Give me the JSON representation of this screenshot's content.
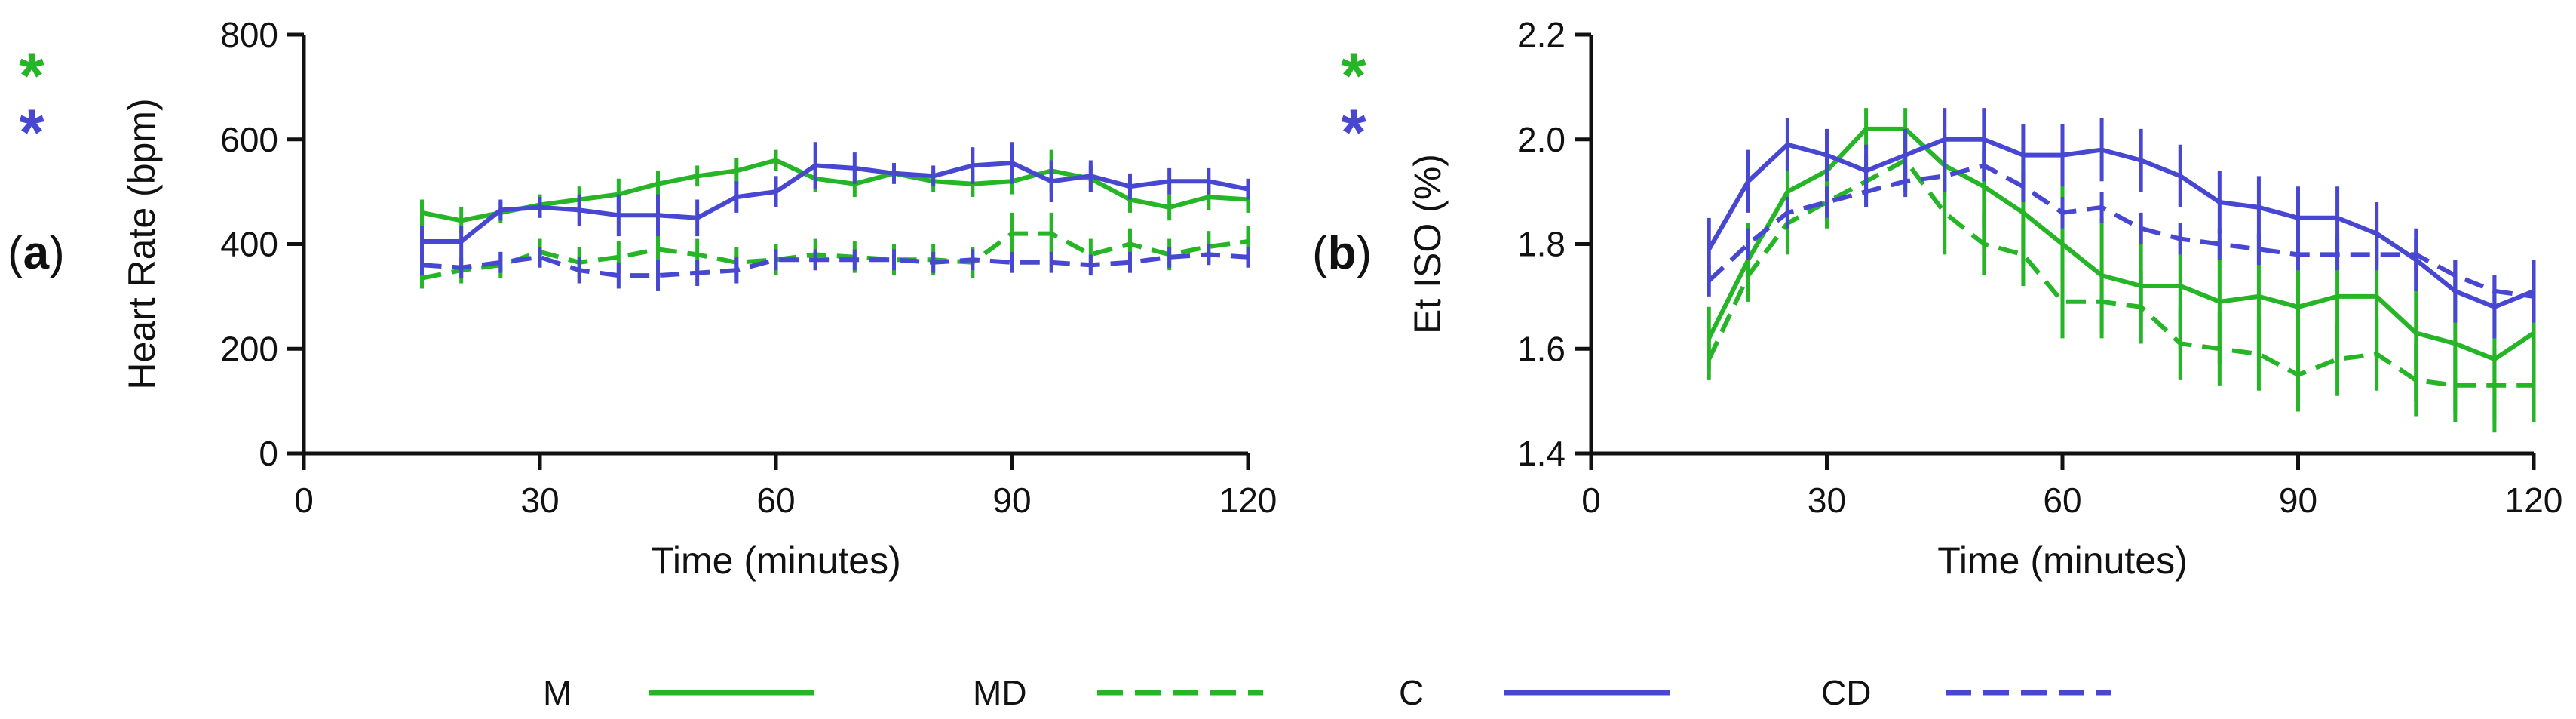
{
  "colors": {
    "green": "#26b526",
    "blue": "#4747d1",
    "axis": "#111111"
  },
  "legend": [
    {
      "label": "M",
      "color": "#26b526",
      "dashed": false
    },
    {
      "label": "MD",
      "color": "#26b526",
      "dashed": true
    },
    {
      "label": "C",
      "color": "#4747d1",
      "dashed": false
    },
    {
      "label": "CD",
      "color": "#4747d1",
      "dashed": true
    }
  ],
  "chart_data": [
    {
      "type": "line",
      "panel_label": "(a)",
      "panel_label_parts": [
        "(",
        "a",
        ")"
      ],
      "title": "",
      "xlabel": "Time (minutes)",
      "ylabel": "Heart Rate (bpm)",
      "xlim": [
        0,
        120
      ],
      "ylim": [
        0,
        800
      ],
      "xticks": [
        0,
        30,
        60,
        90,
        120
      ],
      "yticks": [
        0,
        200,
        400,
        600,
        800
      ],
      "significance_markers": [
        {
          "text": "*",
          "color": "#26b526"
        },
        {
          "text": "*",
          "color": "#4747d1"
        }
      ],
      "x": [
        15,
        20,
        25,
        30,
        35,
        40,
        45,
        50,
        55,
        60,
        65,
        70,
        75,
        80,
        85,
        90,
        95,
        100,
        105,
        110,
        115,
        120
      ],
      "series": [
        {
          "name": "M",
          "color": "#26b526",
          "dashed": false,
          "values": [
            460,
            445,
            460,
            475,
            485,
            495,
            515,
            530,
            540,
            560,
            525,
            515,
            535,
            520,
            515,
            520,
            540,
            525,
            485,
            470,
            490,
            485
          ],
          "errors": [
            25,
            25,
            20,
            20,
            25,
            30,
            25,
            20,
            25,
            20,
            25,
            25,
            20,
            20,
            25,
            25,
            40,
            25,
            25,
            25,
            25,
            25
          ]
        },
        {
          "name": "MD",
          "color": "#26b526",
          "dashed": true,
          "values": [
            335,
            350,
            360,
            385,
            365,
            375,
            390,
            380,
            365,
            370,
            380,
            375,
            370,
            370,
            365,
            420,
            420,
            380,
            400,
            380,
            395,
            405
          ],
          "errors": [
            20,
            25,
            25,
            25,
            30,
            30,
            30,
            30,
            30,
            30,
            30,
            30,
            30,
            30,
            30,
            40,
            40,
            30,
            30,
            30,
            30,
            30
          ]
        },
        {
          "name": "C",
          "color": "#4747d1",
          "dashed": false,
          "values": [
            405,
            405,
            465,
            470,
            465,
            455,
            455,
            450,
            490,
            500,
            550,
            545,
            535,
            530,
            550,
            555,
            520,
            530,
            510,
            520,
            520,
            505
          ],
          "errors": [
            30,
            30,
            20,
            20,
            30,
            40,
            40,
            35,
            30,
            30,
            45,
            30,
            20,
            20,
            35,
            40,
            40,
            30,
            25,
            25,
            25,
            20
          ]
        },
        {
          "name": "CD",
          "color": "#4747d1",
          "dashed": true,
          "values": [
            360,
            355,
            365,
            375,
            350,
            340,
            340,
            345,
            350,
            370,
            370,
            370,
            370,
            365,
            370,
            365,
            365,
            360,
            365,
            375,
            380,
            375
          ],
          "errors": [
            20,
            20,
            20,
            20,
            25,
            25,
            30,
            25,
            25,
            20,
            20,
            20,
            20,
            20,
            20,
            20,
            20,
            20,
            20,
            20,
            20,
            20
          ]
        }
      ]
    },
    {
      "type": "line",
      "panel_label": "(b)",
      "panel_label_parts": [
        "(",
        "b",
        ")"
      ],
      "title": "",
      "xlabel": "Time (minutes)",
      "ylabel": "Et ISO (%)",
      "xlim": [
        0,
        120
      ],
      "ylim": [
        1.4,
        2.2
      ],
      "xticks": [
        0,
        30,
        60,
        90,
        120
      ],
      "yticks": [
        1.4,
        1.6,
        1.8,
        2.0,
        2.2
      ],
      "ytick_labels": [
        "1.4",
        "1.6",
        "1.8",
        "2.0",
        "2.2"
      ],
      "significance_markers": [
        {
          "text": "*",
          "color": "#26b526"
        },
        {
          "text": "*",
          "color": "#4747d1"
        }
      ],
      "x": [
        15,
        20,
        25,
        30,
        35,
        40,
        45,
        50,
        55,
        60,
        65,
        70,
        75,
        80,
        85,
        90,
        95,
        100,
        105,
        110,
        115,
        120
      ],
      "series": [
        {
          "name": "M",
          "color": "#26b526",
          "dashed": false,
          "values": [
            1.62,
            1.77,
            1.9,
            1.94,
            2.02,
            2.02,
            1.95,
            1.91,
            1.86,
            1.8,
            1.74,
            1.72,
            1.72,
            1.69,
            1.7,
            1.68,
            1.7,
            1.7,
            1.63,
            1.61,
            1.58,
            1.63
          ],
          "errors": [
            0.06,
            0.07,
            0.06,
            0.05,
            0.04,
            0.04,
            0.06,
            0.08,
            0.1,
            0.12,
            0.11,
            0.11,
            0.12,
            0.12,
            0.12,
            0.13,
            0.12,
            0.12,
            0.13,
            0.13,
            0.14,
            0.14
          ]
        },
        {
          "name": "MD",
          "color": "#26b526",
          "dashed": true,
          "values": [
            1.58,
            1.74,
            1.84,
            1.88,
            1.92,
            1.96,
            1.86,
            1.8,
            1.78,
            1.69,
            1.69,
            1.68,
            1.61,
            1.6,
            1.59,
            1.55,
            1.58,
            1.59,
            1.54,
            1.53,
            1.53,
            1.53
          ],
          "errors": [
            0.04,
            0.05,
            0.06,
            0.05,
            0.05,
            0.06,
            0.08,
            0.06,
            0.06,
            0.07,
            0.07,
            0.07,
            0.07,
            0.07,
            0.07,
            0.07,
            0.07,
            0.07,
            0.07,
            0.07,
            0.07,
            0.07
          ]
        },
        {
          "name": "C",
          "color": "#4747d1",
          "dashed": false,
          "values": [
            1.79,
            1.92,
            1.99,
            1.97,
            1.94,
            1.97,
            2.0,
            2.0,
            1.97,
            1.97,
            1.98,
            1.96,
            1.93,
            1.88,
            1.87,
            1.85,
            1.85,
            1.82,
            1.77,
            1.71,
            1.68,
            1.71
          ],
          "errors": [
            0.06,
            0.06,
            0.05,
            0.05,
            0.05,
            0.05,
            0.06,
            0.06,
            0.06,
            0.06,
            0.06,
            0.06,
            0.06,
            0.06,
            0.06,
            0.06,
            0.06,
            0.06,
            0.06,
            0.06,
            0.06,
            0.06
          ]
        },
        {
          "name": "CD",
          "color": "#4747d1",
          "dashed": true,
          "values": [
            1.73,
            1.8,
            1.86,
            1.88,
            1.9,
            1.92,
            1.93,
            1.95,
            1.91,
            1.86,
            1.87,
            1.83,
            1.81,
            1.8,
            1.79,
            1.78,
            1.78,
            1.78,
            1.78,
            1.74,
            1.71,
            1.7
          ],
          "errors": [
            0.03,
            0.03,
            0.03,
            0.03,
            0.03,
            0.03,
            0.03,
            0.03,
            0.03,
            0.03,
            0.03,
            0.03,
            0.03,
            0.03,
            0.03,
            0.03,
            0.03,
            0.03,
            0.03,
            0.03,
            0.03,
            0.03
          ]
        }
      ]
    }
  ]
}
